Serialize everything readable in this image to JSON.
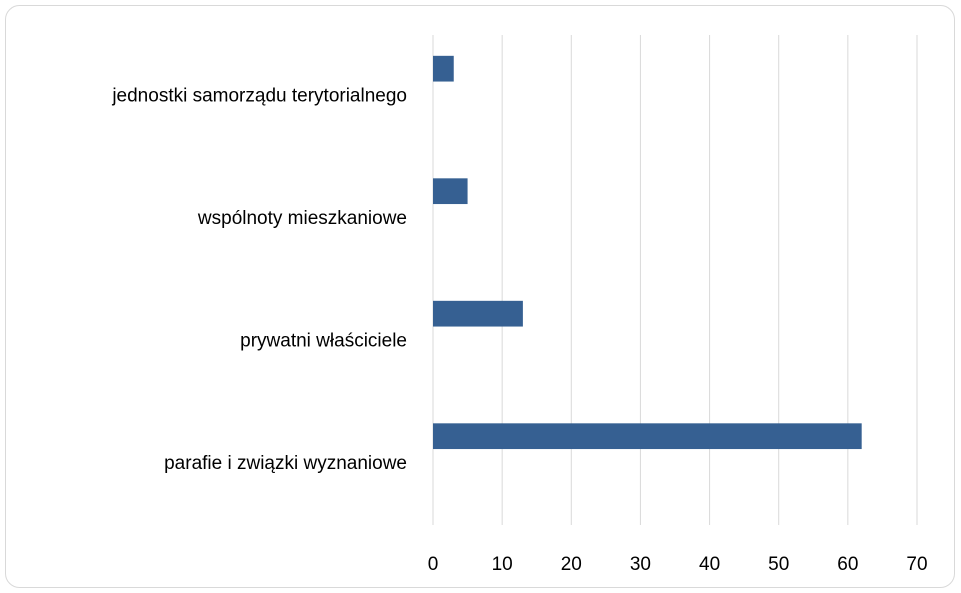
{
  "chart_data": {
    "type": "hbar",
    "categories": [
      "jednostki samorządu terytorialnego",
      "wspólnoty mieszkaniowe",
      "prywatni właściciele",
      "parafie i związki wyznaniowe"
    ],
    "values": [
      3,
      5,
      13,
      62
    ],
    "color": "#366092",
    "xlim": [
      0,
      70
    ],
    "xticks": [
      0,
      10,
      20,
      30,
      40,
      50,
      60,
      70
    ],
    "grid": true
  }
}
